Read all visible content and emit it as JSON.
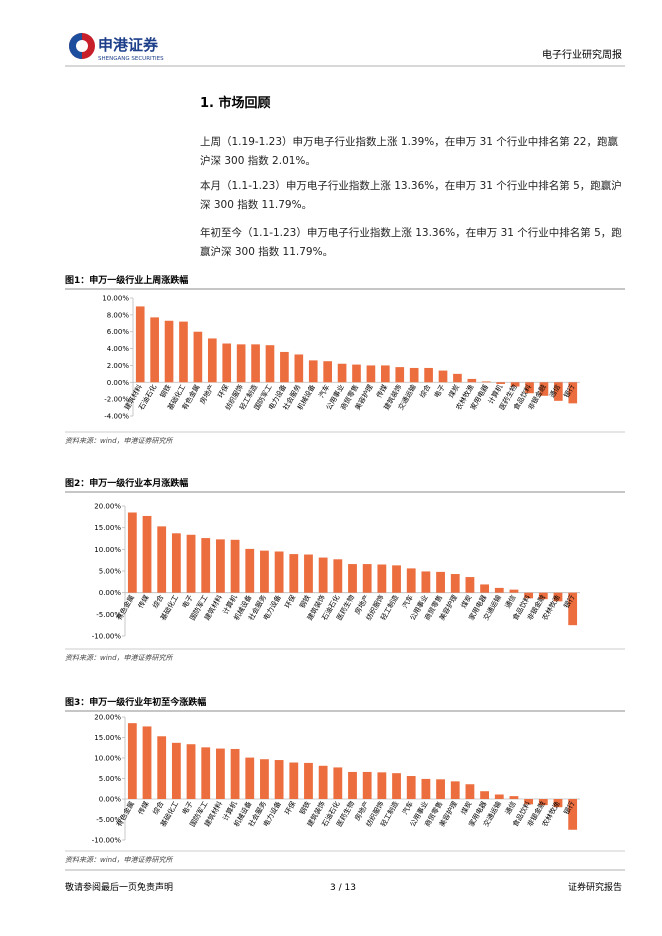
{
  "header": {
    "company": "申港证券",
    "company_en": "SHENGANG SECURITIES",
    "report_type": "电子行业研究周报"
  },
  "section": {
    "title": "1. 市场回顾",
    "paragraphs": [
      "上周（1.19-1.23）申万电子行业指数上涨 1.39%，在申万 31 个行业中排名第 22，跑赢沪深 300 指数 2.01%。",
      "本月（1.1-1.23）申万电子行业指数上涨 13.36%，在申万 31 个行业中排名第 5，跑赢沪深 300 指数 11.79%。",
      "年初至今（1.1-1.23）申万电子行业指数上涨 13.36%，在申万 31 个行业中排名第 5，跑赢沪深 300 指数 11.79%。"
    ]
  },
  "chart_data": [
    {
      "type": "bar",
      "title": "图1：申万一级行业上周涨跌幅",
      "source": "资料来源：wind，申港证券研究所",
      "color": "#ec6d3e",
      "categories": [
        "建筑材料",
        "石油石化",
        "钢铁",
        "基础化工",
        "有色金属",
        "房地产",
        "环保",
        "纺织服饰",
        "轻工制造",
        "国防军工",
        "电力设备",
        "社会服务",
        "机械设备",
        "汽车",
        "公用事业",
        "商贸零售",
        "美容护理",
        "传媒",
        "建筑装饰",
        "交通运输",
        "综合",
        "电子",
        "煤炭",
        "农林牧渔",
        "家用电器",
        "计算机",
        "医药生物",
        "食品饮料",
        "非银金融",
        "通信",
        "银行"
      ],
      "values": [
        9.0,
        7.7,
        7.3,
        7.2,
        6.0,
        5.2,
        4.6,
        4.5,
        4.5,
        4.4,
        3.6,
        3.3,
        2.6,
        2.5,
        2.2,
        2.1,
        2.0,
        2.0,
        1.8,
        1.7,
        1.7,
        1.39,
        1.0,
        0.4,
        0.1,
        -0.2,
        -0.5,
        -1.3,
        -1.6,
        -2.2,
        -2.5
      ],
      "ylim": [
        -4,
        10
      ],
      "yticks": [
        {
          "value": -4,
          "label": "-4.00%"
        },
        {
          "value": -2,
          "label": "-2.00%"
        },
        {
          "value": 0,
          "label": "0.00%"
        },
        {
          "value": 2,
          "label": "2.00%"
        },
        {
          "value": 4,
          "label": "4.00%"
        },
        {
          "value": 6,
          "label": "6.00%"
        },
        {
          "value": 8,
          "label": "8.00%"
        },
        {
          "value": 10,
          "label": "10.00%"
        }
      ]
    },
    {
      "type": "bar",
      "title": "图2：申万一级行业本月涨跌幅",
      "source": "资料来源：wind，申港证券研究所",
      "color": "#ec6d3e",
      "categories": [
        "有色金属",
        "传媒",
        "综合",
        "基础化工",
        "电子",
        "国防军工",
        "建筑材料",
        "计算机",
        "机械设备",
        "社会服务",
        "电力设备",
        "环保",
        "钢铁",
        "建筑装饰",
        "石油石化",
        "医药生物",
        "房地产",
        "纺织服饰",
        "轻工制造",
        "汽车",
        "公用事业",
        "商贸零售",
        "美容护理",
        "煤炭",
        "家用电器",
        "交通运输",
        "通信",
        "食品饮料",
        "非银金融",
        "农林牧渔",
        "银行"
      ],
      "values": [
        18.5,
        17.7,
        15.3,
        13.7,
        13.36,
        12.6,
        12.3,
        12.2,
        10.1,
        9.7,
        9.5,
        8.9,
        8.8,
        8.1,
        7.7,
        6.6,
        6.6,
        6.5,
        6.3,
        5.6,
        4.9,
        4.8,
        4.3,
        3.6,
        1.9,
        1.1,
        0.7,
        -1.3,
        -1.5,
        -2.0,
        -7.5
      ],
      "ylim": [
        -10,
        20
      ],
      "yticks": [
        {
          "value": -10,
          "label": "-10.00%"
        },
        {
          "value": -5,
          "label": "-5.00%"
        },
        {
          "value": 0,
          "label": "0.00%"
        },
        {
          "value": 5,
          "label": "5.00%"
        },
        {
          "value": 10,
          "label": "10.00%"
        },
        {
          "value": 15,
          "label": "15.00%"
        },
        {
          "value": 20,
          "label": "20.00%"
        }
      ]
    },
    {
      "type": "bar",
      "title": "图3：申万一级行业年初至今涨跌幅",
      "source": "资料来源：wind，申港证券研究所",
      "color": "#ec6d3e",
      "categories": [
        "有色金属",
        "传媒",
        "综合",
        "基础化工",
        "电子",
        "国防军工",
        "建筑材料",
        "计算机",
        "机械设备",
        "社会服务",
        "电力设备",
        "环保",
        "钢铁",
        "建筑装饰",
        "石油石化",
        "医药生物",
        "房地产",
        "纺织服饰",
        "轻工制造",
        "汽车",
        "公用事业",
        "商贸零售",
        "美容护理",
        "煤炭",
        "家用电器",
        "交通运输",
        "通信",
        "食品饮料",
        "非银金融",
        "农林牧渔",
        "银行"
      ],
      "values": [
        18.5,
        17.7,
        15.3,
        13.7,
        13.36,
        12.6,
        12.3,
        12.2,
        10.1,
        9.7,
        9.5,
        8.9,
        8.8,
        8.1,
        7.7,
        6.6,
        6.6,
        6.5,
        6.3,
        5.6,
        4.9,
        4.8,
        4.3,
        3.6,
        1.9,
        1.1,
        0.7,
        -1.3,
        -1.5,
        -2.0,
        -7.5
      ],
      "ylim": [
        -10,
        20
      ],
      "yticks": [
        {
          "value": -10,
          "label": "-10.00%"
        },
        {
          "value": -5,
          "label": "-5.00%"
        },
        {
          "value": 0,
          "label": "0.00%"
        },
        {
          "value": 5,
          "label": "5.00%"
        },
        {
          "value": 10,
          "label": "10.00%"
        },
        {
          "value": 15,
          "label": "15.00%"
        },
        {
          "value": 20,
          "label": "20.00%"
        }
      ]
    }
  ],
  "footer": {
    "disclaimer": "敬请参阅最后一页免责声明",
    "page": "3 / 13",
    "label": "证券研究报告"
  }
}
